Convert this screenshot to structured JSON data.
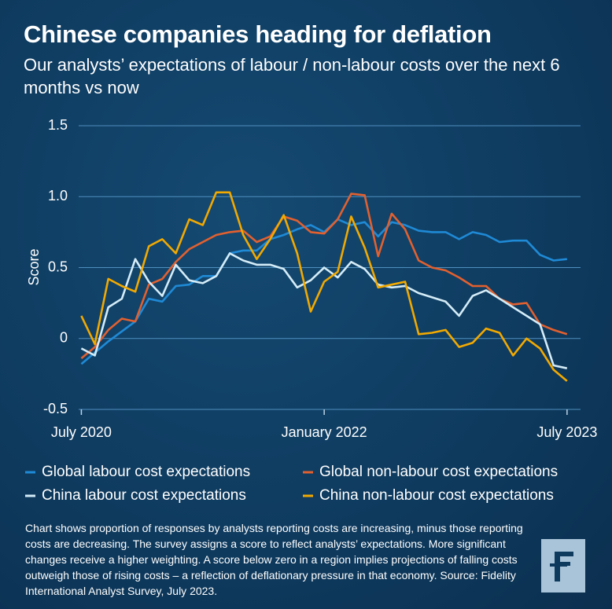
{
  "chart_data": {
    "type": "line",
    "title": "Chinese companies heading for deflation",
    "subtitle": "Our analysts’ expectations of labour / non-labour costs over the next 6 months vs now",
    "y_label": "Score",
    "x": [
      0,
      1,
      2,
      3,
      4,
      5,
      6,
      7,
      8,
      9,
      10,
      11,
      12,
      13,
      14,
      15,
      16,
      17,
      18,
      19,
      20,
      21,
      22,
      23,
      24,
      25,
      26,
      27,
      28,
      29,
      30,
      31,
      32,
      33,
      34,
      35,
      36
    ],
    "xlim": [
      -0.2,
      37
    ],
    "xticks": [
      {
        "value": 0,
        "label": "July 2020"
      },
      {
        "value": 18,
        "label": "January 2022"
      },
      {
        "value": 36,
        "label": "July 2023"
      }
    ],
    "ylim": [
      -0.5,
      1.5
    ],
    "yticks": [
      {
        "value": -0.5,
        "label": "-0.5"
      },
      0,
      {
        "value": 0.5,
        "label": "0.5"
      },
      {
        "value": 1.0,
        "label": "1.0"
      },
      {
        "value": 1.5,
        "label": "1.5"
      }
    ],
    "grid": true,
    "series": [
      {
        "name": "Global labour cost expectations",
        "color": "#1f8ad6",
        "values": [
          -0.18,
          -0.1,
          -0.02,
          0.05,
          0.12,
          0.28,
          0.26,
          0.37,
          0.38,
          0.44,
          0.44,
          0.6,
          0.62,
          0.62,
          0.7,
          0.73,
          0.77,
          0.8,
          0.75,
          0.84,
          0.8,
          0.82,
          0.72,
          0.82,
          0.8,
          0.76,
          0.75,
          0.75,
          0.7,
          0.75,
          0.73,
          0.68,
          0.69,
          0.69,
          0.59,
          0.55,
          0.56
        ]
      },
      {
        "name": "Global non-labour cost expectations",
        "color": "#e2602f",
        "values": [
          -0.14,
          -0.06,
          0.06,
          0.14,
          0.12,
          0.38,
          0.42,
          0.54,
          0.63,
          0.68,
          0.73,
          0.75,
          0.76,
          0.68,
          0.72,
          0.86,
          0.83,
          0.75,
          0.74,
          0.84,
          1.02,
          1.01,
          0.58,
          0.88,
          0.77,
          0.55,
          0.5,
          0.48,
          0.43,
          0.37,
          0.37,
          0.28,
          0.24,
          0.25,
          0.1,
          0.06,
          0.03
        ]
      },
      {
        "name": "China labour cost expectations",
        "color": "#d4ecf7",
        "values": [
          -0.07,
          -0.12,
          0.22,
          0.28,
          0.56,
          0.4,
          0.3,
          0.52,
          0.41,
          0.39,
          0.44,
          0.6,
          0.55,
          0.52,
          0.52,
          0.49,
          0.36,
          0.41,
          0.5,
          0.43,
          0.54,
          0.49,
          0.38,
          0.36,
          0.37,
          0.32,
          0.29,
          0.26,
          0.16,
          0.3,
          0.34,
          0.28,
          0.22,
          0.16,
          0.1,
          -0.19,
          -0.21
        ]
      },
      {
        "name": "China non-labour cost expectations",
        "color": "#f2a900",
        "values": [
          0.16,
          -0.04,
          0.42,
          0.37,
          0.33,
          0.65,
          0.7,
          0.6,
          0.84,
          0.8,
          1.03,
          1.03,
          0.73,
          0.56,
          0.7,
          0.87,
          0.6,
          0.19,
          0.4,
          0.47,
          0.86,
          0.64,
          0.36,
          0.38,
          0.4,
          0.03,
          0.04,
          0.06,
          -0.06,
          -0.03,
          0.07,
          0.04,
          -0.12,
          0.0,
          -0.07,
          -0.22,
          -0.3
        ]
      }
    ],
    "legend": "bottom",
    "note": "Chart shows proportion of responses by analysts reporting costs are increasing, minus those reporting costs are decreasing. The survey assigns a score to reflect analysts’ expectations. More significant changes receive a higher weighting. A score below zero in a region implies projections of falling costs outweigh those of rising costs – a reflection of deflationary pressure in that economy. Source: Fidelity International Analyst Survey, July 2023."
  }
}
